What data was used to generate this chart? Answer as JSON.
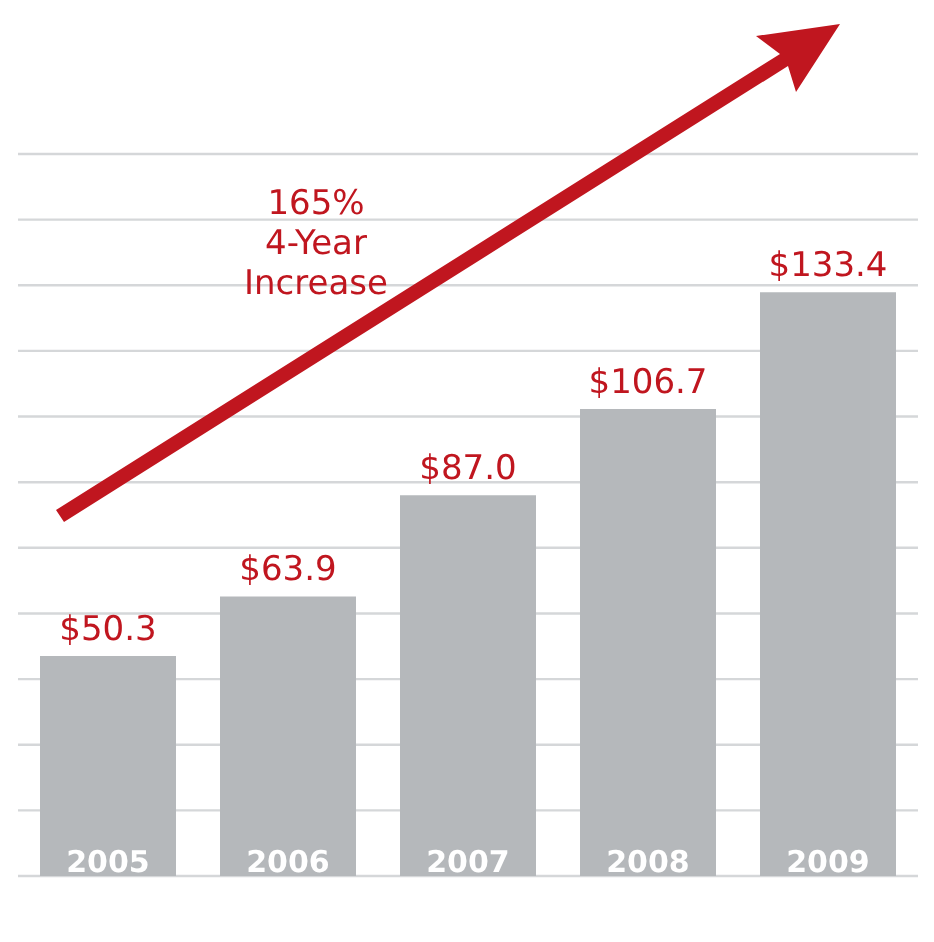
{
  "chart_data": {
    "type": "bar",
    "categories": [
      "2005",
      "2006",
      "2007",
      "2008",
      "2009"
    ],
    "values": [
      50.3,
      63.9,
      87.0,
      106.7,
      133.4
    ],
    "value_labels": [
      "$50.3",
      "$63.9",
      "$87.0",
      "$106.7",
      "$133.4"
    ],
    "color": "#b5b8bb",
    "ylim": [
      0,
      165
    ],
    "yticks": [
      {
        "value": 0,
        "label": null
      },
      {
        "value": 15,
        "label": null
      },
      {
        "value": 30,
        "label": null
      },
      {
        "value": 45,
        "label": null
      },
      {
        "value": 60,
        "label": null
      },
      {
        "value": 75,
        "label": null
      },
      {
        "value": 90,
        "label": null
      },
      {
        "value": 105,
        "label": null
      },
      {
        "value": 120,
        "label": null
      },
      {
        "value": 135,
        "label": null
      },
      {
        "value": 150,
        "label": null
      },
      {
        "value": 165,
        "label": null
      }
    ],
    "grid": "y",
    "annotations": [
      "165%\n4-Year\nIncrease"
    ]
  }
}
